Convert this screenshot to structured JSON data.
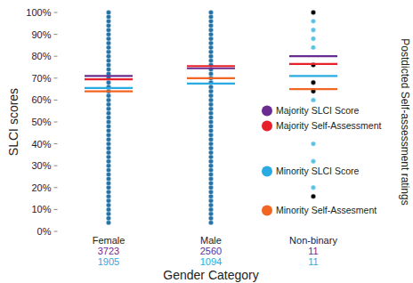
{
  "chart_data": {
    "type": "strip",
    "y_label": "SLCI scores",
    "y2_label": "Postdicted Self-assessment ratings",
    "x_label": "Gender Category",
    "categories": [
      "Female",
      "Male",
      "Non-binary"
    ],
    "ylim": [
      0,
      100
    ],
    "yticks": [
      {
        "value": 0,
        "label": "0%"
      },
      {
        "value": 10,
        "label": "10%"
      },
      {
        "value": 20,
        "label": "20%"
      },
      {
        "value": 30,
        "label": "30%"
      },
      {
        "value": 40,
        "label": "40%"
      },
      {
        "value": 50,
        "label": "50%"
      },
      {
        "value": 60,
        "label": "60%"
      },
      {
        "value": 70,
        "label": "70%"
      },
      {
        "value": 80,
        "label": "80%"
      },
      {
        "value": 90,
        "label": "90%"
      },
      {
        "value": 100,
        "label": "100%"
      }
    ],
    "grid": false,
    "legend": "right",
    "series": [
      {
        "name": "Majority SLCI Score",
        "color": "#6a2c91",
        "values": [
          71,
          74.5,
          80
        ]
      },
      {
        "name": "Majority Self-Assessment",
        "color": "#e8202a",
        "values": [
          69.5,
          75.5,
          76.5
        ]
      },
      {
        "name": "Minority SLCI Score",
        "color": "#29abe2",
        "values": [
          65.5,
          67.5,
          71
        ]
      },
      {
        "name": "Minority Self-Assesment",
        "color": "#f26522",
        "values": [
          64,
          70,
          65
        ]
      }
    ],
    "dots": [
      {
        "color": "#2472a6",
        "values": [
          [
            4,
            6,
            8,
            10,
            12,
            14,
            16,
            18,
            20,
            22,
            24,
            26,
            28,
            30,
            32,
            34,
            36,
            38,
            40,
            42,
            44,
            46,
            48,
            50,
            52,
            54,
            56,
            58,
            60,
            62,
            64,
            66,
            68,
            70,
            72,
            74,
            76,
            78,
            80,
            82,
            84,
            86,
            88,
            90,
            92,
            94,
            96,
            98,
            100
          ],
          [
            4,
            6,
            8,
            10,
            12,
            14,
            16,
            18,
            20,
            22,
            24,
            26,
            28,
            30,
            32,
            34,
            36,
            38,
            40,
            42,
            44,
            46,
            48,
            50,
            52,
            54,
            56,
            58,
            60,
            62,
            64,
            66,
            68,
            70,
            72,
            74,
            76,
            78,
            80,
            82,
            84,
            86,
            88,
            90,
            92,
            94,
            96,
            98,
            100
          ],
          []
        ]
      },
      {
        "color": "#000000",
        "values": [
          [],
          [],
          [
            100,
            76,
            68,
            64,
            16
          ]
        ]
      },
      {
        "color": "#5bc2e7",
        "values": [
          [],
          [],
          [
            96,
            92,
            88,
            84,
            60,
            40,
            32,
            20
          ]
        ]
      }
    ],
    "counts": [
      {
        "color": "#6a2c91",
        "values": [
          3723,
          2560,
          11
        ]
      },
      {
        "color": "#29abe2",
        "values": [
          1905,
          1094,
          11
        ]
      }
    ]
  }
}
